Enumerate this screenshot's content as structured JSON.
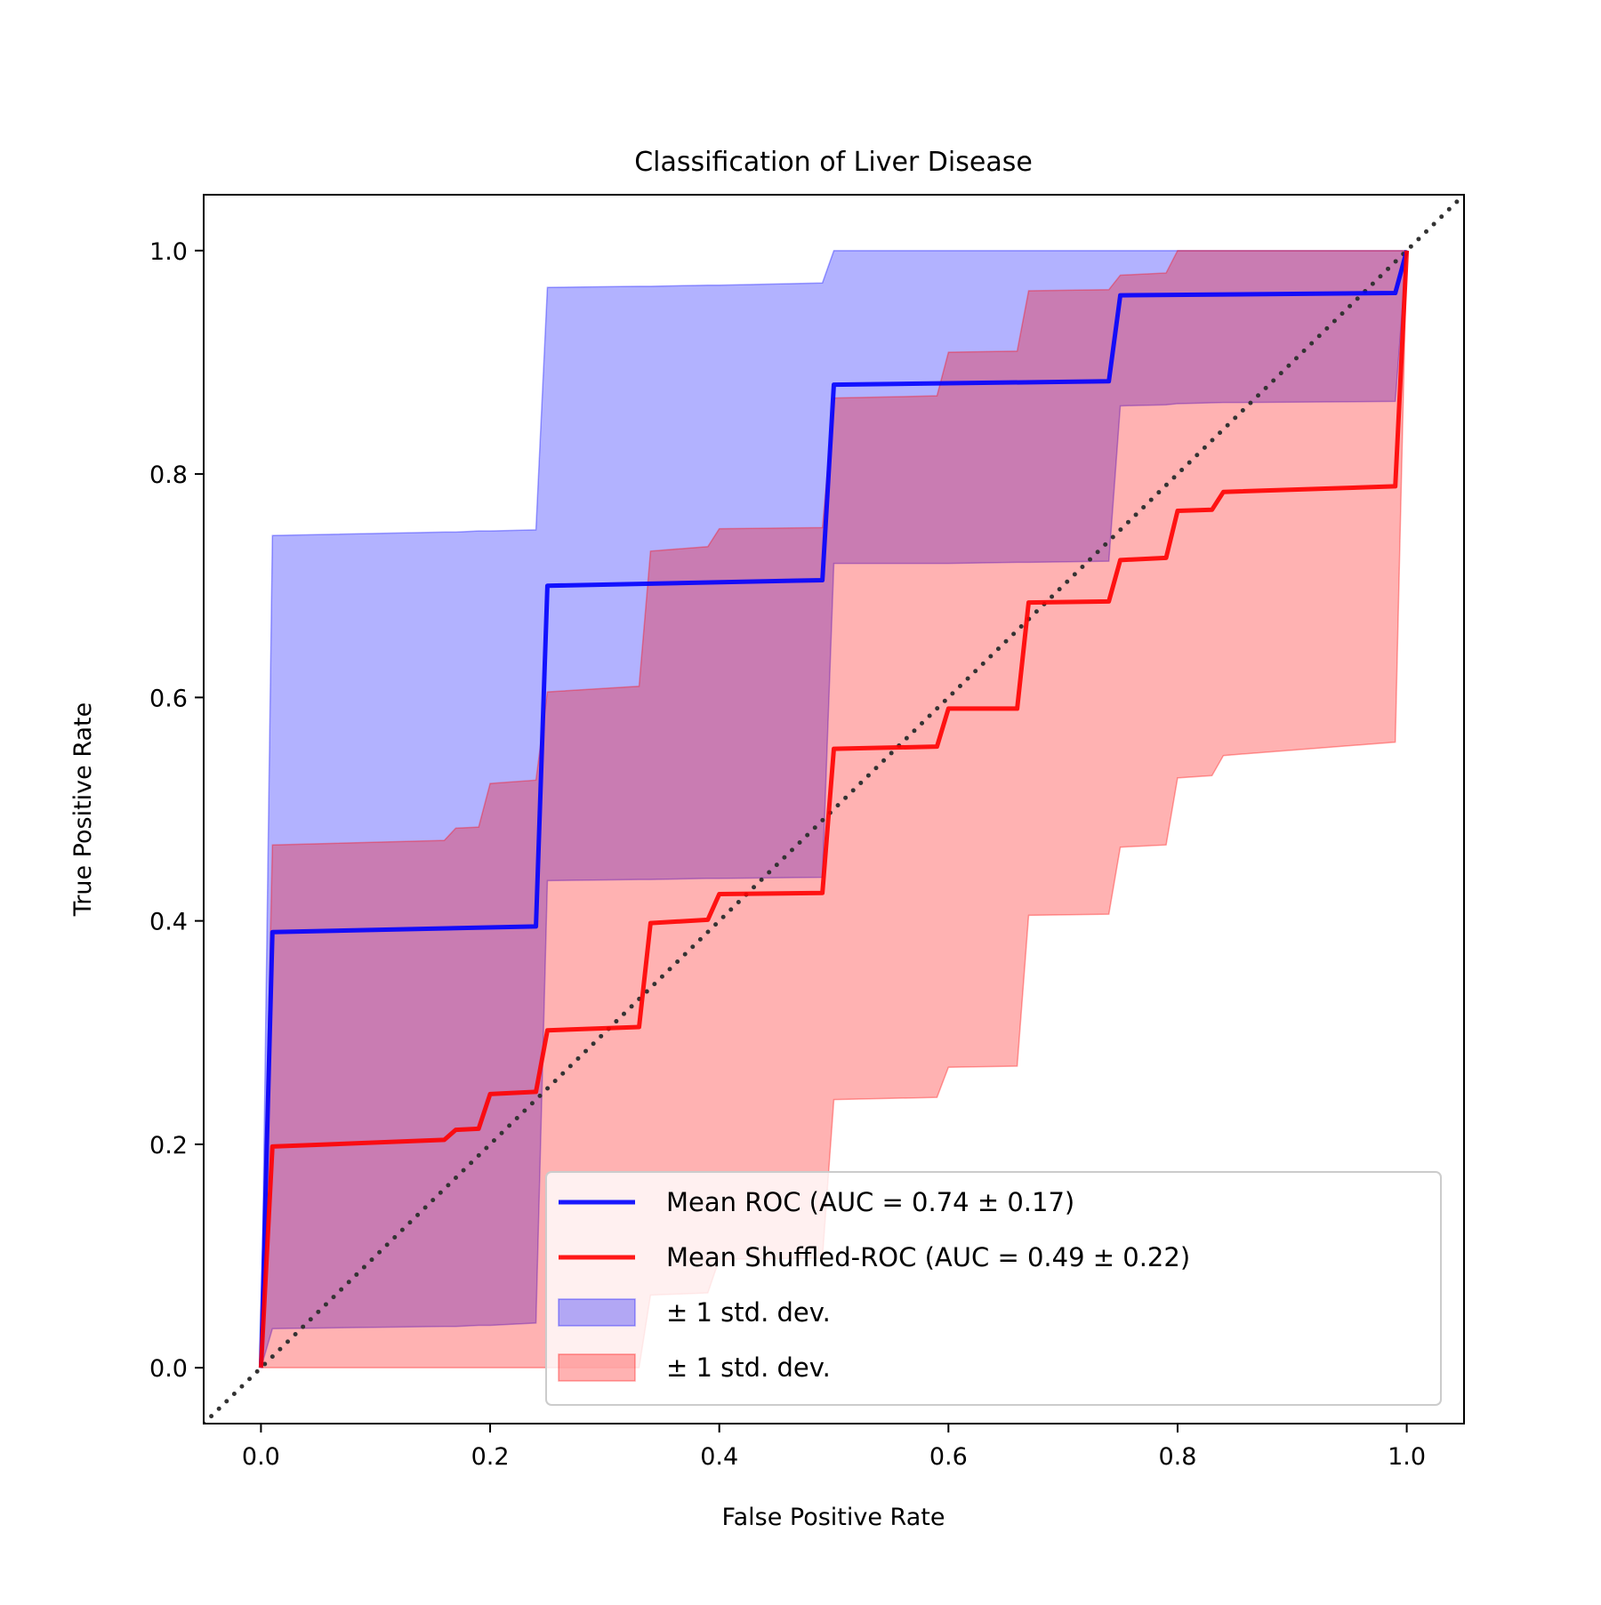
{
  "chart_data": {
    "type": "line",
    "title": "Classification of Liver Disease",
    "xlabel": "False Positive Rate",
    "ylabel": "True Positive Rate",
    "xlim": [
      -0.05,
      1.05
    ],
    "ylim": [
      -0.05,
      1.05
    ],
    "xticks": [
      "0.0",
      "0.2",
      "0.4",
      "0.6",
      "0.8",
      "1.0"
    ],
    "yticks": [
      "0.0",
      "0.2",
      "0.4",
      "0.6",
      "0.8",
      "1.0"
    ],
    "grid": false,
    "legend_position": "lower-right",
    "chance_line": {
      "x": [
        -0.05,
        1.05
      ],
      "y": [
        -0.05,
        1.05
      ],
      "style": "dotted",
      "color": "#333333"
    },
    "series": [
      {
        "name": "Mean ROC (AUC = 0.74 ± 0.17)",
        "color": "#0000ff",
        "x": [
          0,
          0.01,
          0.24,
          0.25,
          0.49,
          0.5,
          0.74,
          0.75,
          0.99,
          1.0
        ],
        "y": [
          0,
          0.39,
          0.395,
          0.7,
          0.705,
          0.88,
          0.883,
          0.96,
          0.962,
          1.0
        ],
        "band": {
          "name": "± 1 std. dev.",
          "color": "#0000ff",
          "x": [
            0,
            0.01,
            0.16,
            0.17,
            0.19,
            0.2,
            0.24,
            0.25,
            0.33,
            0.34,
            0.39,
            0.4,
            0.49,
            0.5,
            0.59,
            0.6,
            0.66,
            0.67,
            0.74,
            0.75,
            0.79,
            0.8,
            0.84,
            0.85,
            0.99,
            1.0
          ],
          "upper": [
            0,
            0.745,
            0.748,
            0.748,
            0.749,
            0.749,
            0.75,
            0.967,
            0.968,
            0.968,
            0.969,
            0.969,
            0.971,
            1.0,
            1.0,
            1.0,
            1.0,
            1.0,
            1.0,
            1.0,
            1.0,
            1.0,
            1.0,
            1.0,
            1.0,
            1.0
          ],
          "lower": [
            0,
            0.035,
            0.037,
            0.037,
            0.038,
            0.038,
            0.04,
            0.436,
            0.437,
            0.437,
            0.438,
            0.438,
            0.439,
            0.72,
            0.72,
            0.72,
            0.721,
            0.721,
            0.722,
            0.861,
            0.862,
            0.863,
            0.864,
            0.864,
            0.865,
            1.0
          ]
        }
      },
      {
        "name": "Mean Shuffled-ROC (AUC = 0.49 ± 0.22)",
        "color": "#ff0000",
        "x": [
          0,
          0.01,
          0.16,
          0.17,
          0.19,
          0.2,
          0.24,
          0.25,
          0.33,
          0.34,
          0.39,
          0.4,
          0.49,
          0.5,
          0.59,
          0.6,
          0.66,
          0.67,
          0.74,
          0.75,
          0.79,
          0.8,
          0.83,
          0.84,
          0.99,
          1.0
        ],
        "y": [
          0,
          0.198,
          0.204,
          0.213,
          0.214,
          0.245,
          0.247,
          0.302,
          0.305,
          0.398,
          0.401,
          0.424,
          0.425,
          0.554,
          0.556,
          0.59,
          0.59,
          0.685,
          0.686,
          0.723,
          0.725,
          0.767,
          0.768,
          0.784,
          0.789,
          1.0
        ],
        "band": {
          "name": "± 1 std. dev.",
          "color": "#ff0000",
          "x": [
            0,
            0.01,
            0.16,
            0.17,
            0.19,
            0.2,
            0.24,
            0.25,
            0.33,
            0.34,
            0.39,
            0.4,
            0.49,
            0.5,
            0.59,
            0.6,
            0.66,
            0.67,
            0.74,
            0.75,
            0.79,
            0.8,
            0.83,
            0.84,
            0.99,
            1.0
          ],
          "upper": [
            0,
            0.468,
            0.472,
            0.483,
            0.484,
            0.523,
            0.526,
            0.605,
            0.61,
            0.731,
            0.735,
            0.751,
            0.752,
            0.868,
            0.87,
            0.909,
            0.91,
            0.964,
            0.965,
            0.978,
            0.98,
            1.0,
            1.0,
            1.0,
            1.0,
            1.0
          ],
          "lower": [
            0,
            0.0,
            0.0,
            0.0,
            0.0,
            0.0,
            0.0,
            0.0,
            0.0,
            0.065,
            0.067,
            0.097,
            0.098,
            0.24,
            0.242,
            0.269,
            0.27,
            0.405,
            0.406,
            0.466,
            0.468,
            0.528,
            0.53,
            0.548,
            0.56,
            1.0
          ]
        }
      }
    ],
    "legend": [
      {
        "label": "Mean ROC (AUC = 0.74 ± 0.17)",
        "kind": "line",
        "color": "#0000ff"
      },
      {
        "label": "Mean Shuffled-ROC (AUC = 0.49 ± 0.22)",
        "kind": "line",
        "color": "#ff0000"
      },
      {
        "label": "± 1 std. dev.",
        "kind": "patch",
        "color": "#0000ff"
      },
      {
        "label": "± 1 std. dev.",
        "kind": "patch",
        "color": "#ff0000"
      }
    ]
  }
}
